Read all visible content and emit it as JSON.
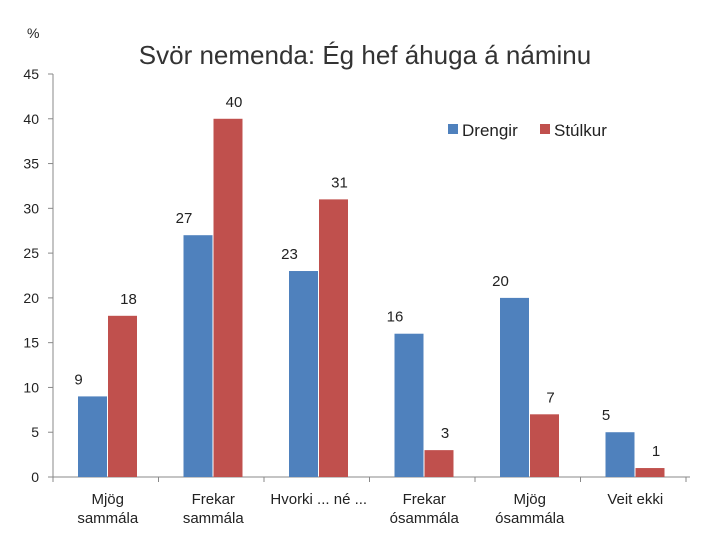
{
  "chart_data": {
    "type": "bar",
    "title": "Svör nemenda: Ég hef áhuga á náminu",
    "ylabel": "%",
    "ylim": [
      0,
      45
    ],
    "yticks": [
      0,
      5,
      10,
      15,
      20,
      25,
      30,
      35,
      40,
      45
    ],
    "categories": [
      [
        "Mjög",
        "sammála"
      ],
      [
        "Frekar",
        "sammála"
      ],
      [
        "Hvorki ... né ..."
      ],
      [
        "Frekar",
        "ósammála"
      ],
      [
        "Mjög",
        "ósammála"
      ],
      [
        "Veit ekki"
      ]
    ],
    "series": [
      {
        "name": "Drengir",
        "values": [
          9,
          27,
          23,
          16,
          20,
          5
        ],
        "color": "#4F81BD"
      },
      {
        "name": "Stúlkur",
        "values": [
          18,
          40,
          31,
          3,
          7,
          1
        ],
        "color": "#C0504D"
      }
    ],
    "grid": false,
    "legend": "top-right"
  }
}
